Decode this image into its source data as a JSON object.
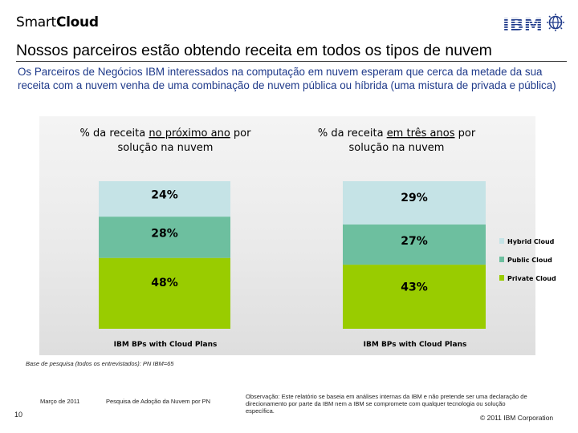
{
  "header": {
    "brand_light": "Smart",
    "brand_bold": "Cloud",
    "logo": "IBM"
  },
  "slide": {
    "title": "Nossos parceiros estão obtendo receita em todos os tipos de nuvem",
    "subtitle": "Os Parceiros de Negócios IBM interessados na computação em nuvem esperam que cerca da metade da sua receita com a nuvem venha de uma combinação de nuvem pública ou híbrida (uma mistura de privada e pública)"
  },
  "chart_data": {
    "type": "bar",
    "stacked": true,
    "value_unit": "%",
    "series_order": [
      "Private Cloud",
      "Public Cloud",
      "Hybrid Cloud"
    ],
    "legend": [
      "Hybrid Cloud",
      "Public Cloud",
      "Private Cloud"
    ],
    "legend_position": "right",
    "colors": {
      "Hybrid Cloud": "#c5e3e6",
      "Public Cloud": "#6dbf9f",
      "Private Cloud": "#99cc00"
    },
    "charts": [
      {
        "title_before": "% da receita ",
        "title_underlined": "no próximo  ano",
        "title_after": " por",
        "title_line2": "solução na nuvem",
        "category": "IBM BPs with Cloud Plans",
        "values": {
          "Private Cloud": 48,
          "Public Cloud": 28,
          "Hybrid Cloud": 24
        }
      },
      {
        "title_before": "% da receita ",
        "title_underlined": "em três anos",
        "title_after": " por",
        "title_line2": "solução na nuvem",
        "category": "IBM BPs with Cloud Plans",
        "values": {
          "Private Cloud": 43,
          "Public Cloud": 27,
          "Hybrid Cloud": 29
        }
      }
    ]
  },
  "footer": {
    "base": "Base de pesquisa (todos os entrevistados): PN IBM=65",
    "date": "Março de 2011",
    "survey": "Pesquisa de Adoção da Nuvem por PN",
    "note": "Observação: Este relatório se baseia em análises internas da IBM e não pretende ser uma declaração de direcionamento por parte da IBM nem a IBM se compromete com qualquer tecnologia ou solução específica.",
    "page": "10",
    "copyright": "© 2011 IBM Corporation"
  }
}
